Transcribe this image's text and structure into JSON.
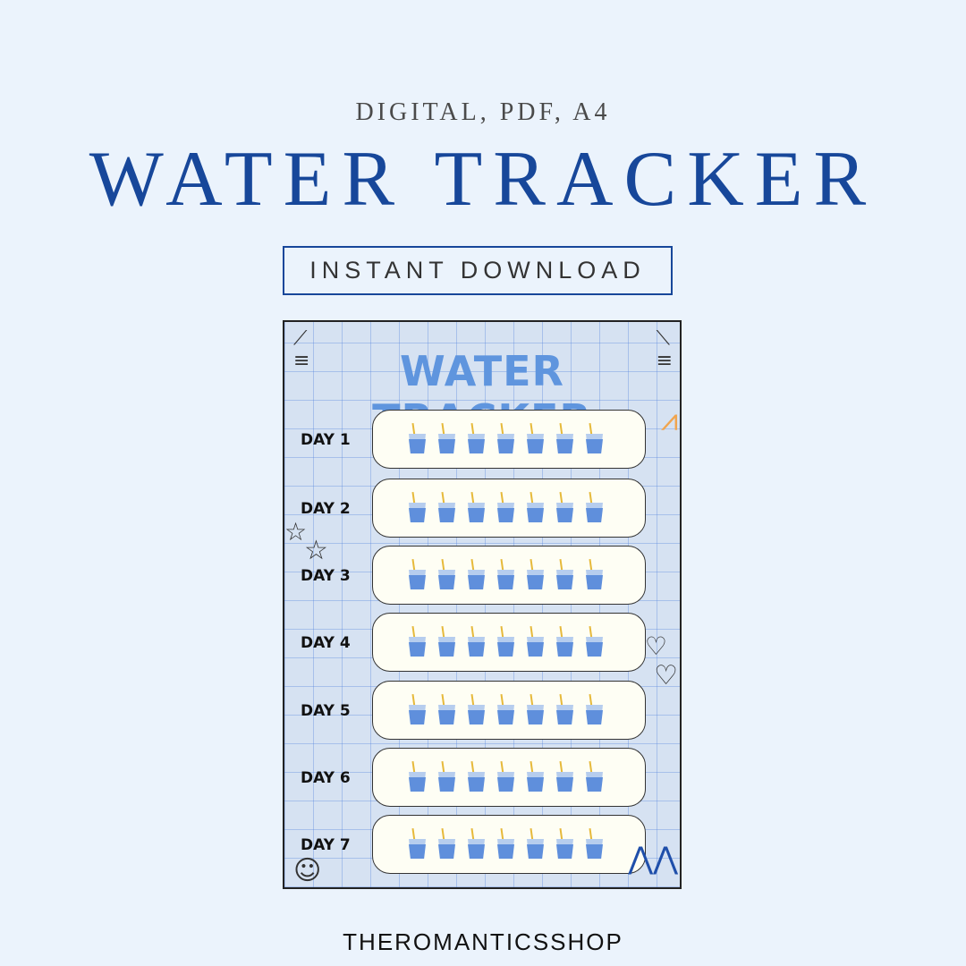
{
  "header": {
    "subtitle": "DIGITAL, PDF, A4",
    "title": "WATER TRACKER",
    "badge": "INSTANT DOWNLOAD"
  },
  "preview": {
    "title": "WATER TRACKER",
    "cups_per_day": 7,
    "days": [
      {
        "label": "DAY 1"
      },
      {
        "label": "DAY 2"
      },
      {
        "label": "DAY 3"
      },
      {
        "label": "DAY 4"
      },
      {
        "label": "DAY 5"
      },
      {
        "label": "DAY 6"
      },
      {
        "label": "DAY 7"
      }
    ],
    "icons": [
      "water-glass-icon",
      "star-icon",
      "heart-icon",
      "smiley-icon",
      "zigzag-icon"
    ]
  },
  "footer": {
    "shop": "THEROMANTICSSHOP"
  },
  "colors": {
    "title": "#17479a",
    "preview_title": "#5f95de",
    "background": "#ebf3fc"
  }
}
